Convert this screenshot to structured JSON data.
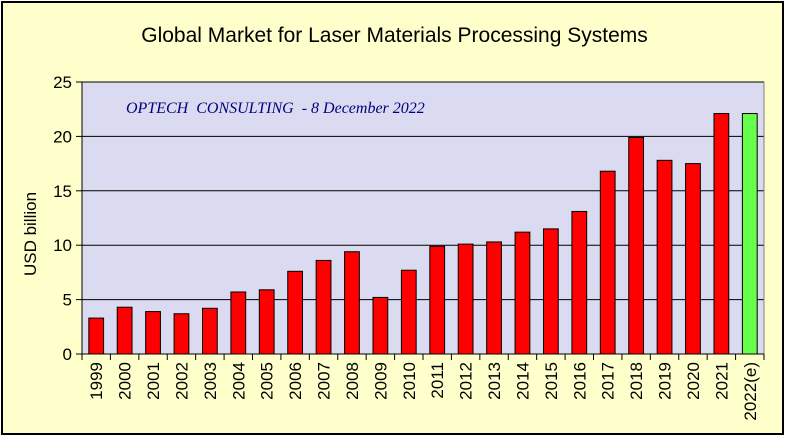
{
  "chart_data": {
    "type": "bar",
    "title": "Global Market for Laser Materials Processing Systems",
    "annotation": "OPTECH  CONSULTING  - 8 December 2022",
    "xlabel": "",
    "ylabel": "USD billion",
    "ylim": [
      0,
      25
    ],
    "yticks": [
      0,
      5,
      10,
      15,
      20,
      25
    ],
    "grid": true,
    "legend": "none",
    "categories": [
      "1999",
      "2000",
      "2001",
      "2002",
      "2003",
      "2004",
      "2005",
      "2006",
      "2007",
      "2008",
      "2009",
      "2010",
      "2011",
      "2012",
      "2013",
      "2014",
      "2015",
      "2016",
      "2017",
      "2018",
      "2019",
      "2020",
      "2021",
      "2022(e)"
    ],
    "values": [
      3.3,
      4.3,
      3.9,
      3.7,
      4.2,
      5.7,
      5.9,
      7.6,
      8.6,
      9.4,
      5.2,
      7.7,
      9.9,
      10.1,
      10.3,
      11.2,
      11.5,
      13.1,
      16.8,
      19.9,
      17.8,
      17.5,
      22.1,
      22.1
    ],
    "colors": {
      "bar": "#ff0000",
      "bar_estimate": "#66ff4c",
      "plot_background": "#dadaf0",
      "frame_background": "#ffffcc",
      "annotation": "#000080"
    },
    "estimate_categories": [
      "2022(e)"
    ]
  }
}
